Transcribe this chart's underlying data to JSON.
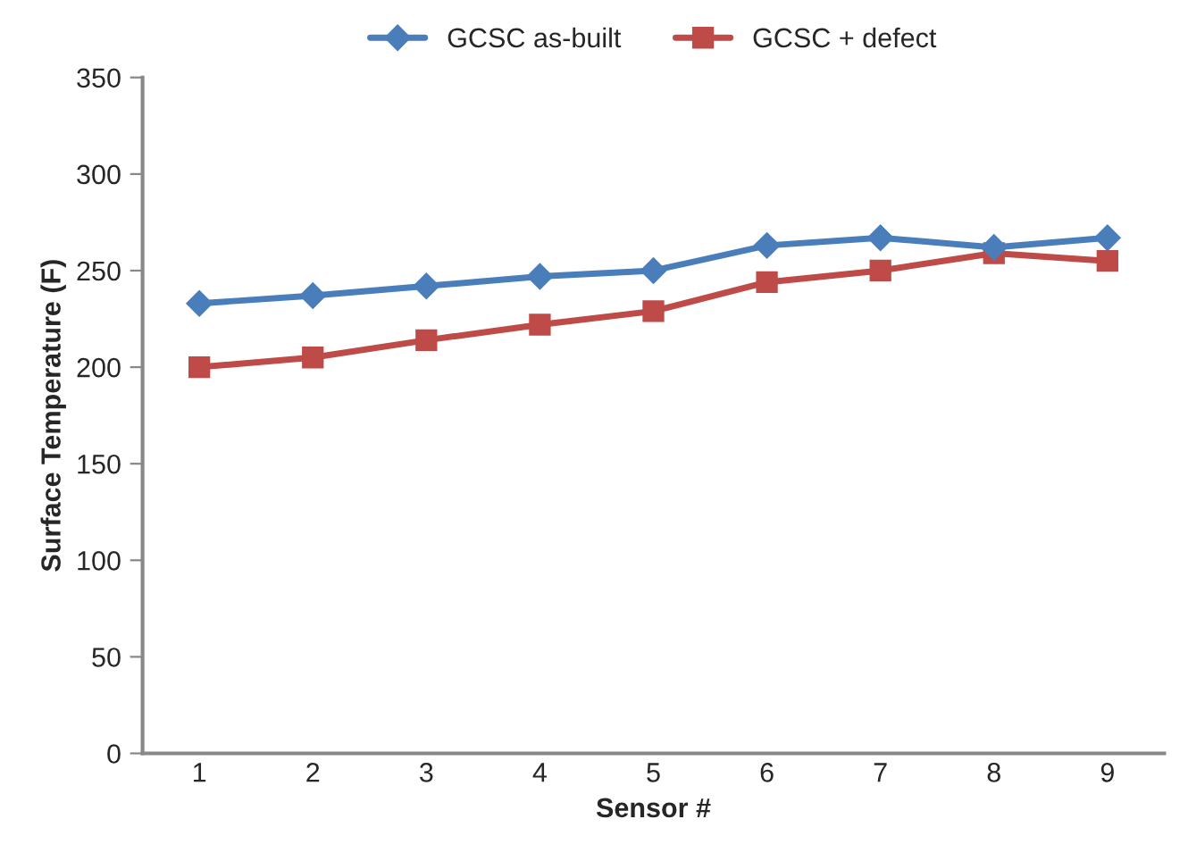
{
  "chart_data": {
    "type": "line",
    "xlabel": "Sensor #",
    "ylabel": "Surface Temperature (F)",
    "categories": [
      "1",
      "2",
      "3",
      "4",
      "5",
      "6",
      "7",
      "8",
      "9"
    ],
    "series": [
      {
        "name": "GCSC as-built",
        "color": "#4a7ebb",
        "marker": "diamond",
        "values": [
          233,
          237,
          242,
          247,
          250,
          263,
          267,
          262,
          267
        ]
      },
      {
        "name": "GCSC + defect",
        "color": "#be4b48",
        "marker": "square",
        "values": [
          200,
          205,
          214,
          222,
          229,
          244,
          250,
          259,
          255
        ]
      }
    ],
    "ylim": [
      0,
      350
    ],
    "yticks": [
      0,
      50,
      100,
      150,
      200,
      250,
      300,
      350
    ],
    "grid": false,
    "legend": "top"
  }
}
